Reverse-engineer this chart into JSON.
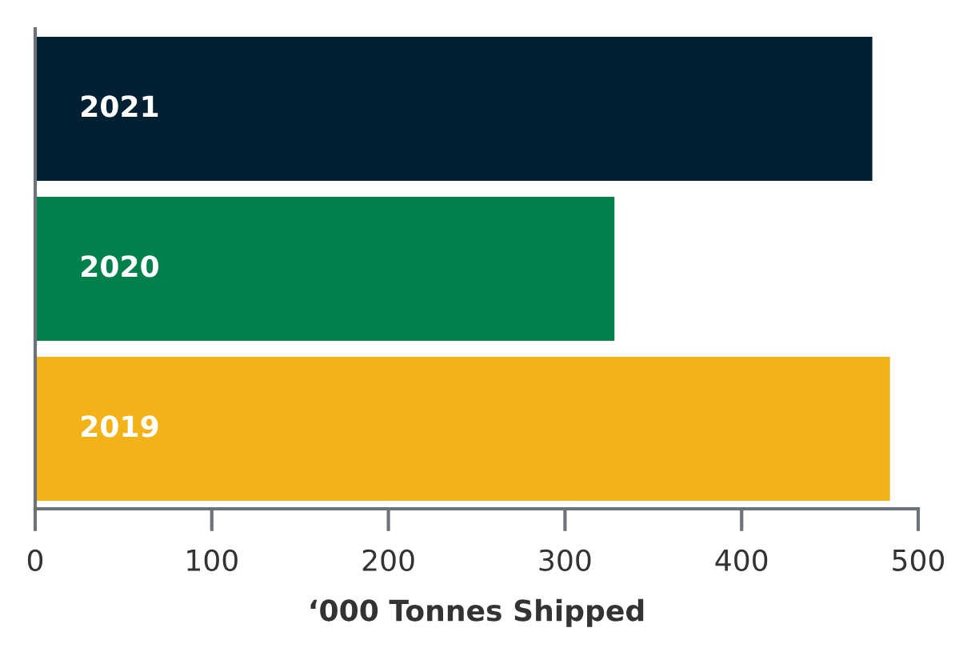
{
  "chart_data": {
    "type": "bar",
    "orientation": "horizontal",
    "xlabel": "‘000 Tonnes Shipped",
    "categories": [
      "2021",
      "2020",
      "2019"
    ],
    "values": [
      474,
      328,
      484
    ],
    "colors": [
      "#002033",
      "#00804a",
      "#f4b219"
    ],
    "xlim": [
      0,
      500
    ],
    "xticks": [
      0,
      100,
      200,
      300,
      400,
      500
    ],
    "grid": false,
    "legend": false
  }
}
